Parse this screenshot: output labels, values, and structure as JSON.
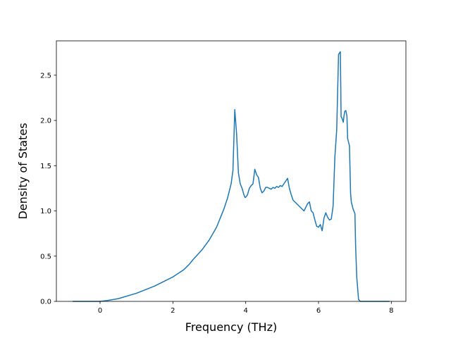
{
  "chart_data": {
    "type": "line",
    "xlabel": "Frequency (THz)",
    "ylabel": "Density of States",
    "xlim": [
      -1.2,
      8.4
    ],
    "ylim": [
      0,
      2.88
    ],
    "x_ticks": [
      0,
      2,
      4,
      6,
      8
    ],
    "y_ticks": [
      0.0,
      0.5,
      1.0,
      1.5,
      2.0,
      2.5
    ],
    "x_tick_labels": [
      "0",
      "2",
      "4",
      "6",
      "8"
    ],
    "y_tick_labels": [
      "0.0",
      "0.5",
      "1.0",
      "1.5",
      "2.0",
      "2.5"
    ],
    "grid": false,
    "line_color": "#1f77b4",
    "series": [
      {
        "x": [
          -0.75,
          0.0,
          0.2,
          0.5,
          1.0,
          1.5,
          2.0,
          2.3,
          2.45,
          2.55,
          2.8,
          3.0,
          3.2,
          3.3,
          3.4,
          3.5,
          3.6,
          3.65,
          3.7,
          3.75,
          3.8,
          3.85,
          3.9,
          3.95,
          3.98,
          4.0,
          4.05,
          4.1,
          4.15,
          4.2,
          4.25,
          4.3,
          4.35,
          4.4,
          4.45,
          4.5,
          4.55,
          4.6,
          4.65,
          4.7,
          4.75,
          4.8,
          4.85,
          4.9,
          4.95,
          5.0,
          5.05,
          5.1,
          5.15,
          5.2,
          5.25,
          5.3,
          5.4,
          5.5,
          5.6,
          5.7,
          5.75,
          5.8,
          5.85,
          5.9,
          5.95,
          6.0,
          6.05,
          6.1,
          6.15,
          6.2,
          6.25,
          6.3,
          6.35,
          6.4,
          6.45,
          6.5,
          6.55,
          6.6,
          6.62,
          6.65,
          6.68,
          6.7,
          6.72,
          6.75,
          6.78,
          6.8,
          6.85,
          6.88,
          6.9,
          6.95,
          7.0,
          7.02,
          7.05,
          7.1,
          7.15,
          7.2,
          7.22,
          7.25,
          7.3,
          7.5,
          7.95
        ],
        "y": [
          0.0,
          0.0,
          0.01,
          0.03,
          0.09,
          0.17,
          0.27,
          0.35,
          0.41,
          0.46,
          0.57,
          0.68,
          0.82,
          0.92,
          1.02,
          1.14,
          1.3,
          1.45,
          2.12,
          1.85,
          1.42,
          1.3,
          1.25,
          1.18,
          1.15,
          1.15,
          1.18,
          1.25,
          1.28,
          1.3,
          1.46,
          1.4,
          1.37,
          1.25,
          1.2,
          1.22,
          1.26,
          1.26,
          1.25,
          1.24,
          1.26,
          1.25,
          1.27,
          1.26,
          1.28,
          1.27,
          1.3,
          1.33,
          1.36,
          1.25,
          1.18,
          1.12,
          1.08,
          1.04,
          1.0,
          1.08,
          1.1,
          1.0,
          0.98,
          0.9,
          0.83,
          0.82,
          0.85,
          0.78,
          0.92,
          0.98,
          0.93,
          0.9,
          0.91,
          1.05,
          1.6,
          1.9,
          2.73,
          2.76,
          2.04,
          2.02,
          1.98,
          2.05,
          2.1,
          2.11,
          2.05,
          1.8,
          1.72,
          1.2,
          1.1,
          1.02,
          0.97,
          0.6,
          0.27,
          0.02,
          0.0,
          0.0,
          0.0,
          0.0,
          0.0,
          0.0,
          0.0
        ]
      }
    ]
  }
}
